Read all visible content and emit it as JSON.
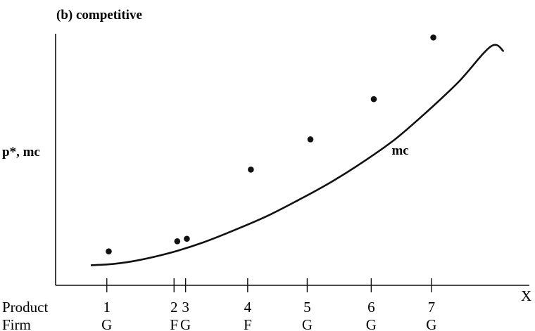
{
  "chart_data": {
    "type": "scatter",
    "title": "(b) competitive",
    "ylabel": "p*, mc",
    "xlabel": "X",
    "xlim": [
      0.2,
      7.6
    ],
    "ylim": [
      0,
      10
    ],
    "grid": false,
    "ticks": [
      {
        "x": 1.0,
        "product": "1",
        "firm": "G"
      },
      {
        "x": 2.05,
        "product": "2",
        "firm": "F"
      },
      {
        "x": 2.23,
        "product": "3",
        "firm": "G"
      },
      {
        "x": 3.2,
        "product": "4",
        "firm": "F"
      },
      {
        "x": 4.13,
        "product": "5",
        "firm": "G"
      },
      {
        "x": 5.13,
        "product": "6",
        "firm": "G"
      },
      {
        "x": 6.07,
        "product": "7",
        "firm": "G"
      }
    ],
    "row_labels": {
      "product": "Product",
      "firm": "Firm"
    },
    "series": [
      {
        "type": "scatter",
        "x": [
          1.03,
          2.1,
          2.25,
          3.25,
          4.18,
          5.17,
          6.1
        ],
        "y": [
          1.35,
          1.75,
          1.85,
          4.6,
          5.8,
          7.4,
          9.85
        ]
      },
      {
        "name": "mc",
        "type": "line",
        "x": [
          0.75,
          1.1,
          1.5,
          2.0,
          2.5,
          3.0,
          3.5,
          4.0,
          4.5,
          5.0,
          5.5,
          6.0,
          6.5,
          7.0,
          7.2
        ],
        "y": [
          0.8,
          0.85,
          1.0,
          1.3,
          1.7,
          2.2,
          2.75,
          3.4,
          4.1,
          4.9,
          5.8,
          6.9,
          8.1,
          9.5,
          9.3
        ]
      }
    ],
    "annotations": [
      {
        "text": "mc",
        "x": 5.45,
        "y": 5.2
      }
    ]
  }
}
